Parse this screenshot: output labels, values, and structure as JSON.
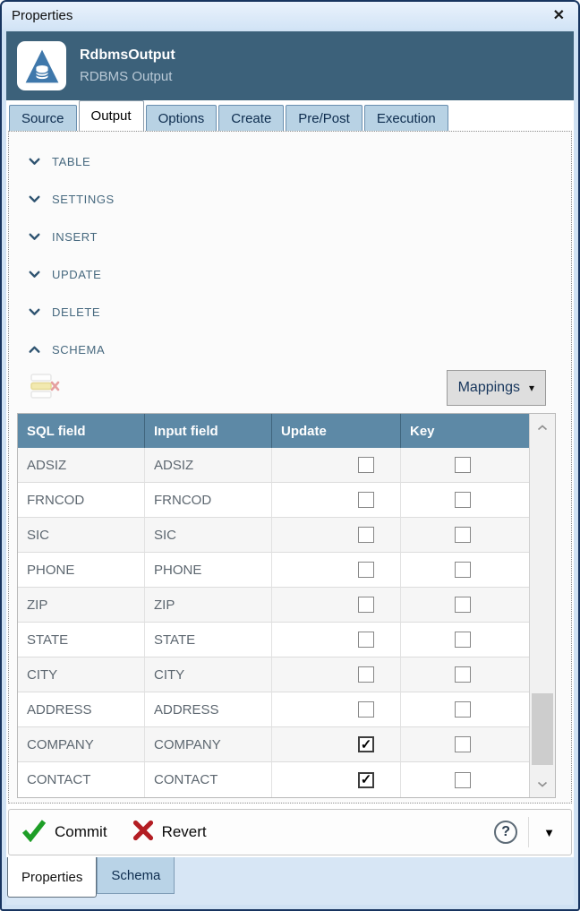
{
  "window": {
    "title": "Properties"
  },
  "icons": {
    "close": "✕",
    "checkmark": "✓",
    "dropdown_caret": "▾",
    "footer_caret": "▼",
    "help": "?"
  },
  "header": {
    "title": "RdbmsOutput",
    "subtitle": "RDBMS Output"
  },
  "tabs": [
    {
      "label": "Source",
      "active": false
    },
    {
      "label": "Output",
      "active": true
    },
    {
      "label": "Options",
      "active": false
    },
    {
      "label": "Create",
      "active": false
    },
    {
      "label": "Pre/Post",
      "active": false
    },
    {
      "label": "Execution",
      "active": false
    }
  ],
  "sections": [
    {
      "label": "TABLE",
      "expanded": false
    },
    {
      "label": "SETTINGS",
      "expanded": false
    },
    {
      "label": "INSERT",
      "expanded": false
    },
    {
      "label": "UPDATE",
      "expanded": false
    },
    {
      "label": "DELETE",
      "expanded": false
    },
    {
      "label": "SCHEMA",
      "expanded": true
    }
  ],
  "schema_toolbar": {
    "mappings_label": "Mappings"
  },
  "table": {
    "columns": [
      "SQL field",
      "Input field",
      "Update",
      "Key"
    ],
    "rows": [
      {
        "sql_field": "ADSIZ",
        "input_field": "ADSIZ",
        "update": false,
        "key": false
      },
      {
        "sql_field": "FRNCOD",
        "input_field": "FRNCOD",
        "update": false,
        "key": false
      },
      {
        "sql_field": "SIC",
        "input_field": "SIC",
        "update": false,
        "key": false
      },
      {
        "sql_field": "PHONE",
        "input_field": "PHONE",
        "update": false,
        "key": false
      },
      {
        "sql_field": "ZIP",
        "input_field": "ZIP",
        "update": false,
        "key": false
      },
      {
        "sql_field": "STATE",
        "input_field": "STATE",
        "update": false,
        "key": false
      },
      {
        "sql_field": "CITY",
        "input_field": "CITY",
        "update": false,
        "key": false
      },
      {
        "sql_field": "ADDRESS",
        "input_field": "ADDRESS",
        "update": false,
        "key": false
      },
      {
        "sql_field": "COMPANY",
        "input_field": "COMPANY",
        "update": true,
        "key": false
      },
      {
        "sql_field": "CONTACT",
        "input_field": "CONTACT",
        "update": true,
        "key": false
      }
    ]
  },
  "footer": {
    "commit_label": "Commit",
    "revert_label": "Revert"
  },
  "bottom_tabs": [
    {
      "label": "Properties",
      "active": true
    },
    {
      "label": "Schema",
      "active": false
    }
  ],
  "colors": {
    "header_band": "#3c617a",
    "tab_inactive": "#b8d2e4",
    "table_header": "#5d89a6",
    "commit_green": "#1e9e27",
    "revert_red": "#b31d23",
    "titlebar": "#d8e7f7",
    "bottom_strip": "#d7e6f5"
  }
}
